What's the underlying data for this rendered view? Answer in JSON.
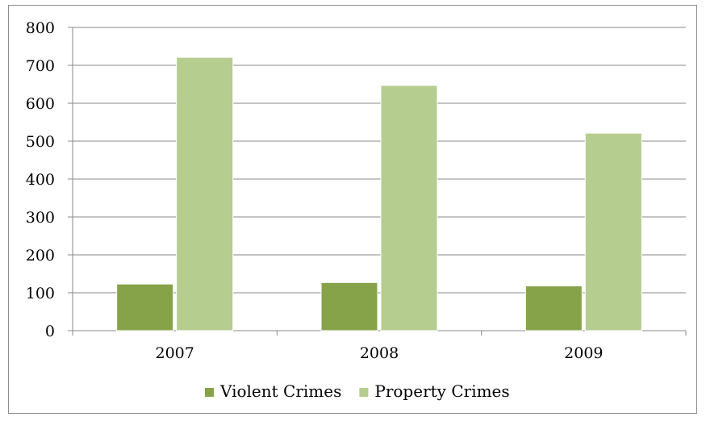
{
  "chart_data": {
    "type": "bar",
    "categories": [
      "2007",
      "2008",
      "2009"
    ],
    "series": [
      {
        "name": "Violent Crimes",
        "values": [
          123,
          127,
          118
        ],
        "color": "#86a34a"
      },
      {
        "name": "Property Crimes",
        "values": [
          721,
          647,
          521
        ],
        "color": "#b5cd8f"
      }
    ],
    "title": "",
    "xlabel": "",
    "ylabel": "",
    "ylim": [
      0,
      800
    ],
    "yticks": [
      "0",
      "100",
      "200",
      "300",
      "400",
      "500",
      "600",
      "700",
      "800"
    ],
    "grid": "horizontal",
    "legend_position": "bottom"
  }
}
